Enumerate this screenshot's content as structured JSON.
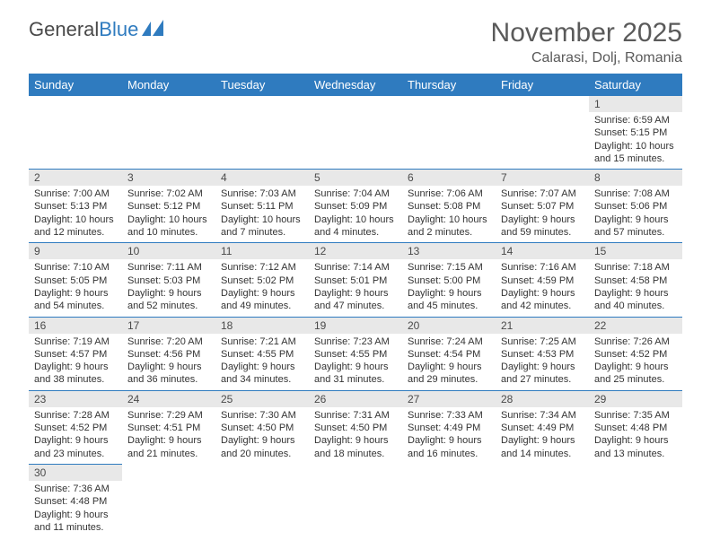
{
  "logo": {
    "text1": "General",
    "text2": "Blue"
  },
  "title": "November 2025",
  "location": "Calarasi, Dolj, Romania",
  "colors": {
    "header_bg": "#2f7bbf",
    "header_text": "#ffffff",
    "daynum_bg": "#e8e8e8",
    "border": "#2f7bbf",
    "text": "#333333",
    "title_text": "#5a5a5a"
  },
  "day_headers": [
    "Sunday",
    "Monday",
    "Tuesday",
    "Wednesday",
    "Thursday",
    "Friday",
    "Saturday"
  ],
  "weeks": [
    [
      null,
      null,
      null,
      null,
      null,
      null,
      {
        "n": "1",
        "sunrise": "Sunrise: 6:59 AM",
        "sunset": "Sunset: 5:15 PM",
        "daylight": "Daylight: 10 hours and 15 minutes."
      }
    ],
    [
      {
        "n": "2",
        "sunrise": "Sunrise: 7:00 AM",
        "sunset": "Sunset: 5:13 PM",
        "daylight": "Daylight: 10 hours and 12 minutes."
      },
      {
        "n": "3",
        "sunrise": "Sunrise: 7:02 AM",
        "sunset": "Sunset: 5:12 PM",
        "daylight": "Daylight: 10 hours and 10 minutes."
      },
      {
        "n": "4",
        "sunrise": "Sunrise: 7:03 AM",
        "sunset": "Sunset: 5:11 PM",
        "daylight": "Daylight: 10 hours and 7 minutes."
      },
      {
        "n": "5",
        "sunrise": "Sunrise: 7:04 AM",
        "sunset": "Sunset: 5:09 PM",
        "daylight": "Daylight: 10 hours and 4 minutes."
      },
      {
        "n": "6",
        "sunrise": "Sunrise: 7:06 AM",
        "sunset": "Sunset: 5:08 PM",
        "daylight": "Daylight: 10 hours and 2 minutes."
      },
      {
        "n": "7",
        "sunrise": "Sunrise: 7:07 AM",
        "sunset": "Sunset: 5:07 PM",
        "daylight": "Daylight: 9 hours and 59 minutes."
      },
      {
        "n": "8",
        "sunrise": "Sunrise: 7:08 AM",
        "sunset": "Sunset: 5:06 PM",
        "daylight": "Daylight: 9 hours and 57 minutes."
      }
    ],
    [
      {
        "n": "9",
        "sunrise": "Sunrise: 7:10 AM",
        "sunset": "Sunset: 5:05 PM",
        "daylight": "Daylight: 9 hours and 54 minutes."
      },
      {
        "n": "10",
        "sunrise": "Sunrise: 7:11 AM",
        "sunset": "Sunset: 5:03 PM",
        "daylight": "Daylight: 9 hours and 52 minutes."
      },
      {
        "n": "11",
        "sunrise": "Sunrise: 7:12 AM",
        "sunset": "Sunset: 5:02 PM",
        "daylight": "Daylight: 9 hours and 49 minutes."
      },
      {
        "n": "12",
        "sunrise": "Sunrise: 7:14 AM",
        "sunset": "Sunset: 5:01 PM",
        "daylight": "Daylight: 9 hours and 47 minutes."
      },
      {
        "n": "13",
        "sunrise": "Sunrise: 7:15 AM",
        "sunset": "Sunset: 5:00 PM",
        "daylight": "Daylight: 9 hours and 45 minutes."
      },
      {
        "n": "14",
        "sunrise": "Sunrise: 7:16 AM",
        "sunset": "Sunset: 4:59 PM",
        "daylight": "Daylight: 9 hours and 42 minutes."
      },
      {
        "n": "15",
        "sunrise": "Sunrise: 7:18 AM",
        "sunset": "Sunset: 4:58 PM",
        "daylight": "Daylight: 9 hours and 40 minutes."
      }
    ],
    [
      {
        "n": "16",
        "sunrise": "Sunrise: 7:19 AM",
        "sunset": "Sunset: 4:57 PM",
        "daylight": "Daylight: 9 hours and 38 minutes."
      },
      {
        "n": "17",
        "sunrise": "Sunrise: 7:20 AM",
        "sunset": "Sunset: 4:56 PM",
        "daylight": "Daylight: 9 hours and 36 minutes."
      },
      {
        "n": "18",
        "sunrise": "Sunrise: 7:21 AM",
        "sunset": "Sunset: 4:55 PM",
        "daylight": "Daylight: 9 hours and 34 minutes."
      },
      {
        "n": "19",
        "sunrise": "Sunrise: 7:23 AM",
        "sunset": "Sunset: 4:55 PM",
        "daylight": "Daylight: 9 hours and 31 minutes."
      },
      {
        "n": "20",
        "sunrise": "Sunrise: 7:24 AM",
        "sunset": "Sunset: 4:54 PM",
        "daylight": "Daylight: 9 hours and 29 minutes."
      },
      {
        "n": "21",
        "sunrise": "Sunrise: 7:25 AM",
        "sunset": "Sunset: 4:53 PM",
        "daylight": "Daylight: 9 hours and 27 minutes."
      },
      {
        "n": "22",
        "sunrise": "Sunrise: 7:26 AM",
        "sunset": "Sunset: 4:52 PM",
        "daylight": "Daylight: 9 hours and 25 minutes."
      }
    ],
    [
      {
        "n": "23",
        "sunrise": "Sunrise: 7:28 AM",
        "sunset": "Sunset: 4:52 PM",
        "daylight": "Daylight: 9 hours and 23 minutes."
      },
      {
        "n": "24",
        "sunrise": "Sunrise: 7:29 AM",
        "sunset": "Sunset: 4:51 PM",
        "daylight": "Daylight: 9 hours and 21 minutes."
      },
      {
        "n": "25",
        "sunrise": "Sunrise: 7:30 AM",
        "sunset": "Sunset: 4:50 PM",
        "daylight": "Daylight: 9 hours and 20 minutes."
      },
      {
        "n": "26",
        "sunrise": "Sunrise: 7:31 AM",
        "sunset": "Sunset: 4:50 PM",
        "daylight": "Daylight: 9 hours and 18 minutes."
      },
      {
        "n": "27",
        "sunrise": "Sunrise: 7:33 AM",
        "sunset": "Sunset: 4:49 PM",
        "daylight": "Daylight: 9 hours and 16 minutes."
      },
      {
        "n": "28",
        "sunrise": "Sunrise: 7:34 AM",
        "sunset": "Sunset: 4:49 PM",
        "daylight": "Daylight: 9 hours and 14 minutes."
      },
      {
        "n": "29",
        "sunrise": "Sunrise: 7:35 AM",
        "sunset": "Sunset: 4:48 PM",
        "daylight": "Daylight: 9 hours and 13 minutes."
      }
    ],
    [
      {
        "n": "30",
        "sunrise": "Sunrise: 7:36 AM",
        "sunset": "Sunset: 4:48 PM",
        "daylight": "Daylight: 9 hours and 11 minutes."
      },
      null,
      null,
      null,
      null,
      null,
      null
    ]
  ]
}
